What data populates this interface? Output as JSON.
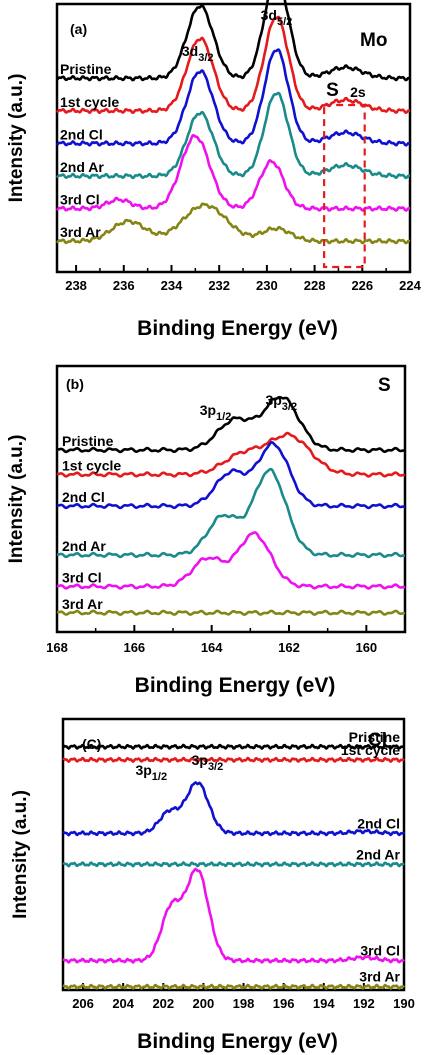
{
  "chart_data": [
    {
      "type": "line",
      "panel_label": "(a)",
      "element": "Mo",
      "xlabel": "Binding Energy (eV)",
      "ylabel": "Intensity (a.u.)",
      "xlim": [
        238.8,
        224
      ],
      "x_reversed": true,
      "x_ticks": [
        238,
        236,
        234,
        232,
        230,
        228,
        226,
        224
      ],
      "peak_labels": [
        {
          "main": "3d",
          "sub": "3/2",
          "x": 232.9
        },
        {
          "main": "3d",
          "sub": "5/2",
          "x": 229.6
        }
      ],
      "annotation": {
        "text": "S",
        "sub": "2s",
        "box_x": [
          227.6,
          225.9
        ]
      },
      "series": [
        {
          "name": "Pristine",
          "color": "#000000",
          "baseline": 5.3,
          "bg": 0.05,
          "peaks": [
            {
              "c": 232.8,
              "h": 2.0,
              "w": 0.55
            },
            {
              "c": 229.6,
              "h": 2.8,
              "w": 0.5
            },
            {
              "c": 226.7,
              "h": 0.3,
              "w": 0.7
            }
          ]
        },
        {
          "name": "1st cycle",
          "color": "#e41a1c",
          "baseline": 4.4,
          "bg": 0.05,
          "peaks": [
            {
              "c": 232.8,
              "h": 2.0,
              "w": 0.55
            },
            {
              "c": 229.6,
              "h": 2.6,
              "w": 0.5
            },
            {
              "c": 226.7,
              "h": 0.3,
              "w": 0.7
            }
          ]
        },
        {
          "name": "2nd Cl",
          "color": "#1010d0",
          "baseline": 3.5,
          "bg": 0.05,
          "peaks": [
            {
              "c": 232.8,
              "h": 2.0,
              "w": 0.55
            },
            {
              "c": 229.6,
              "h": 2.6,
              "w": 0.5
            },
            {
              "c": 226.7,
              "h": 0.3,
              "w": 0.7
            }
          ]
        },
        {
          "name": "2nd Ar",
          "color": "#1a8a8a",
          "baseline": 2.6,
          "bg": 0.05,
          "peaks": [
            {
              "c": 232.8,
              "h": 1.75,
              "w": 0.55
            },
            {
              "c": 229.6,
              "h": 2.3,
              "w": 0.5
            },
            {
              "c": 226.7,
              "h": 0.3,
              "w": 0.7
            }
          ]
        },
        {
          "name": "3rd Cl",
          "color": "#ee10ee",
          "baseline": 1.7,
          "bg": 0.05,
          "peaks": [
            {
              "c": 233.0,
              "h": 2.0,
              "w": 0.6
            },
            {
              "c": 229.8,
              "h": 1.3,
              "w": 0.5
            },
            {
              "c": 236.2,
              "h": 0.25,
              "w": 0.5
            }
          ]
        },
        {
          "name": "3rd Ar",
          "color": "#858515",
          "baseline": 0.8,
          "bg": 0.05,
          "peaks": [
            {
              "c": 232.6,
              "h": 1.0,
              "w": 0.9
            },
            {
              "c": 229.6,
              "h": 0.35,
              "w": 0.6
            },
            {
              "c": 235.8,
              "h": 0.55,
              "w": 0.7
            }
          ]
        }
      ]
    },
    {
      "type": "line",
      "panel_label": "(b)",
      "element": "S",
      "xlabel": "Binding Energy (eV)",
      "ylabel": "Intensity (a.u.)",
      "xlim": [
        168,
        159
      ],
      "x_reversed": true,
      "x_ticks": [
        168,
        166,
        164,
        162,
        160
      ],
      "peak_labels": [
        {
          "main": "3p",
          "sub": "1/2",
          "x": 163.9
        },
        {
          "main": "3p",
          "sub": "3/2",
          "x": 162.2
        }
      ],
      "series": [
        {
          "name": "Pristine",
          "color": "#000000",
          "baseline": 5.2,
          "bg": 0.0,
          "peaks": [
            {
              "c": 162.2,
              "h": 1.5,
              "w": 0.45
            },
            {
              "c": 163.4,
              "h": 0.85,
              "w": 0.45
            }
          ]
        },
        {
          "name": "1st cycle",
          "color": "#e41a1c",
          "baseline": 4.5,
          "bg": 0.0,
          "peaks": [
            {
              "c": 162.0,
              "h": 1.1,
              "w": 0.55
            },
            {
              "c": 163.2,
              "h": 0.55,
              "w": 0.5
            }
          ]
        },
        {
          "name": "2nd Cl",
          "color": "#1010d0",
          "baseline": 3.6,
          "bg": 0.0,
          "peaks": [
            {
              "c": 162.4,
              "h": 1.75,
              "w": 0.4
            },
            {
              "c": 163.5,
              "h": 0.95,
              "w": 0.4
            }
          ]
        },
        {
          "name": "2nd Ar",
          "color": "#1a8a8a",
          "baseline": 2.2,
          "bg": 0.0,
          "peaks": [
            {
              "c": 162.5,
              "h": 2.4,
              "w": 0.42
            },
            {
              "c": 163.7,
              "h": 1.1,
              "w": 0.4
            }
          ]
        },
        {
          "name": "3rd Cl",
          "color": "#ee10ee",
          "baseline": 1.3,
          "bg": 0.0,
          "peaks": [
            {
              "c": 162.9,
              "h": 1.5,
              "w": 0.42
            },
            {
              "c": 164.1,
              "h": 0.8,
              "w": 0.4
            }
          ]
        },
        {
          "name": "3rd Ar",
          "color": "#858515",
          "baseline": 0.55,
          "bg": 0.0,
          "peaks": []
        }
      ]
    },
    {
      "type": "line",
      "panel_label": "(C)",
      "element": "Cl",
      "xlabel": "Binding Energy (eV)",
      "ylabel": "Intensity (a.u.)",
      "xlim": [
        207,
        190
      ],
      "x_reversed": true,
      "x_ticks": [
        206,
        204,
        202,
        200,
        198,
        196,
        194,
        192,
        190
      ],
      "peak_labels": [
        {
          "main": "3p",
          "sub": "1/2",
          "x": 202.6
        },
        {
          "main": "3p",
          "sub": "3/2",
          "x": 199.8
        }
      ],
      "series": [
        {
          "name": "Pristine",
          "color": "#000000",
          "baseline": 7.45,
          "bg": 0.0,
          "peaks": []
        },
        {
          "name": "1st cycle",
          "color": "#e41a1c",
          "baseline": 7.05,
          "bg": 0.0,
          "peaks": []
        },
        {
          "name": "2nd Cl",
          "color": "#1010d0",
          "baseline": 4.8,
          "bg": 0.0,
          "peaks": [
            {
              "c": 200.3,
              "h": 1.55,
              "w": 0.55
            },
            {
              "c": 201.7,
              "h": 0.65,
              "w": 0.5
            },
            {
              "c": 192.0,
              "h": 0.06,
              "w": 0.6
            }
          ]
        },
        {
          "name": "2nd Ar",
          "color": "#1a8a8a",
          "baseline": 3.85,
          "bg": 0.0,
          "peaks": []
        },
        {
          "name": "3rd Cl",
          "color": "#ee10ee",
          "baseline": 0.9,
          "bg": 0.0,
          "peaks": [
            {
              "c": 200.3,
              "h": 2.75,
              "w": 0.55
            },
            {
              "c": 201.6,
              "h": 1.6,
              "w": 0.5
            },
            {
              "c": 192.0,
              "h": 0.1,
              "w": 0.6
            }
          ]
        },
        {
          "name": "3rd Ar",
          "color": "#858515",
          "baseline": 0.1,
          "bg": 0.0,
          "peaks": []
        }
      ]
    }
  ]
}
